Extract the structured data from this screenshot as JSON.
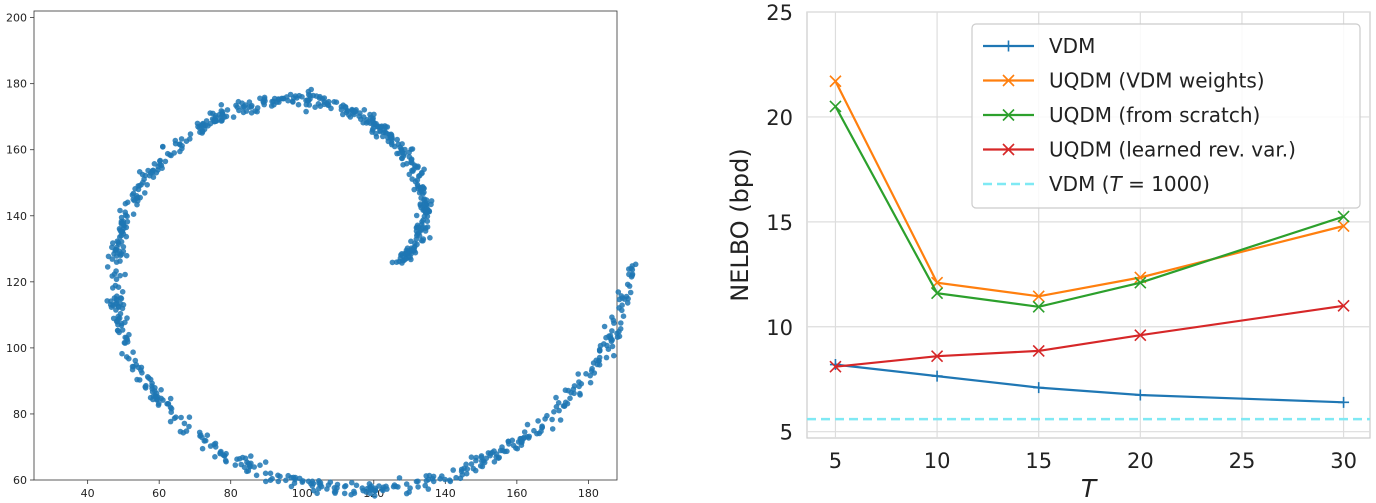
{
  "chart_data": [
    {
      "type": "scatter",
      "title": "",
      "xlabel": "",
      "ylabel": "",
      "xlim": [
        25,
        188
      ],
      "ylim": [
        60,
        202
      ],
      "xticks": [
        40,
        60,
        80,
        100,
        120,
        140,
        160,
        180
      ],
      "yticks": [
        60,
        80,
        100,
        120,
        140,
        160,
        180,
        200
      ],
      "grid": false,
      "color": "#1f77b4",
      "shape": "two-arm spiral",
      "outer_arm": {
        "r_start": 47,
        "r_end": 83,
        "theta_start_deg": 96,
        "theta_end_deg": 358
      },
      "inner_arm": {
        "r_start": 19,
        "r_end": 47,
        "theta_start_deg": 351,
        "theta_end_deg": 96
      },
      "spiral_center": [
        108,
        128.5
      ]
    },
    {
      "type": "line",
      "title": "",
      "xlabel": "T",
      "ylabel": "NELBO (bpd)",
      "xlim": [
        3.6,
        31.3
      ],
      "ylim": [
        4.7,
        25
      ],
      "xticks": [
        5,
        10,
        15,
        20,
        25,
        30
      ],
      "yticks": [
        5,
        10,
        15,
        20,
        25
      ],
      "grid": true,
      "legend_position": "top-right",
      "series": [
        {
          "name": "VDM",
          "color": "#1f77b4",
          "marker": "+",
          "x": [
            5,
            10,
            15,
            20,
            30
          ],
          "y": [
            8.2,
            7.65,
            7.1,
            6.75,
            6.4
          ]
        },
        {
          "name": "UQDM (VDM weights)",
          "color": "#ff7f0e",
          "marker": "x",
          "x": [
            5,
            10,
            15,
            20,
            30
          ],
          "y": [
            21.7,
            12.1,
            11.45,
            12.35,
            14.8
          ]
        },
        {
          "name": "UQDM (from scratch)",
          "color": "#2ca02c",
          "marker": "x",
          "x": [
            5,
            10,
            15,
            20,
            30
          ],
          "y": [
            20.5,
            11.6,
            10.95,
            12.1,
            15.25
          ]
        },
        {
          "name": "UQDM (learned rev. var.)",
          "color": "#d62728",
          "marker": "x",
          "x": [
            5,
            10,
            15,
            20,
            30
          ],
          "y": [
            8.1,
            8.6,
            8.85,
            9.6,
            11.0
          ]
        }
      ],
      "reference_line": {
        "name": "VDM (T = 1000)",
        "legend_parts": [
          "VDM (",
          "T",
          " = 1000)"
        ],
        "y": 5.6,
        "color": "#7fe9f4",
        "style": "dashed"
      }
    }
  ]
}
